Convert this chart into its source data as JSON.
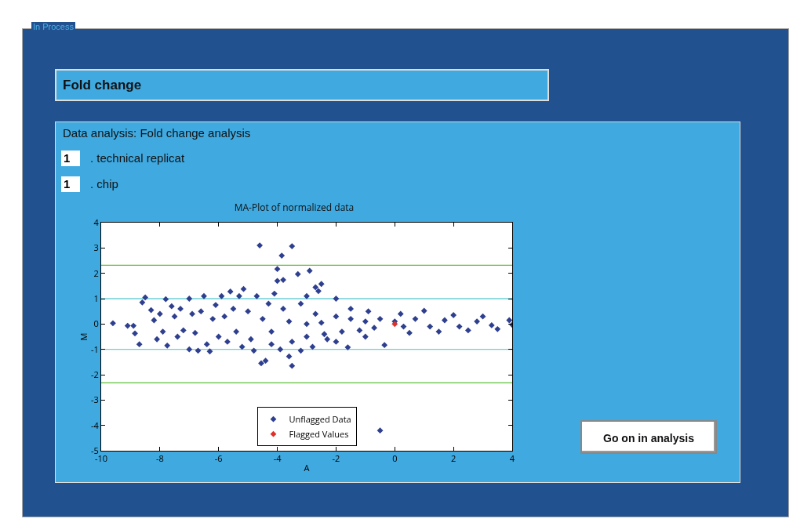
{
  "chart_data": {
    "type": "scatter",
    "title": "MA-Plot of normalized data",
    "xlabel": "A",
    "ylabel": "M",
    "annotations": [
      "In Process",
      "Fold change",
      "Data analysis: Fold change analysis",
      "1",
      ". technical replicat",
      "1",
      ". chip",
      "Go on in analysis"
    ],
    "xlim": [
      -10,
      4
    ],
    "xticks": [
      -10,
      -8,
      -6,
      -4,
      -2,
      0,
      2,
      4
    ],
    "ylim": [
      -5,
      4
    ],
    "yticks": [
      -5,
      -4,
      -3,
      -2,
      -1,
      0,
      1,
      2,
      3,
      4
    ],
    "grid": false,
    "legend": "bottom",
    "marker": "diamond",
    "ref_lines": [
      {
        "axis": "y",
        "value": 2.32,
        "color": "#5fc03a"
      },
      {
        "axis": "y",
        "value": 1,
        "color": "#6ecfd6"
      },
      {
        "axis": "y",
        "value": -1,
        "color": "#6ecfd6"
      },
      {
        "axis": "y",
        "value": -2.32,
        "color": "#5fc03a"
      }
    ],
    "series": [
      {
        "name": "Unflagged Data",
        "color": "#2e3f8f",
        "x": [
          -9.6,
          -9.1,
          -8.9,
          -8.85,
          -8.7,
          -8.6,
          -8.5,
          -8.3,
          -8.2,
          -8.1,
          -8.0,
          -7.9,
          -7.8,
          -7.75,
          -7.6,
          -7.5,
          -7.4,
          -7.3,
          -7.2,
          -7.0,
          -7.0,
          -6.9,
          -6.8,
          -6.7,
          -6.6,
          -6.5,
          -6.4,
          -6.3,
          -6.2,
          -6.1,
          -6.0,
          -5.9,
          -5.8,
          -5.7,
          -5.6,
          -5.5,
          -5.4,
          -5.3,
          -5.2,
          -5.15,
          -5.0,
          -4.9,
          -4.8,
          -4.7,
          -4.6,
          -4.55,
          -4.4,
          -4.3,
          -4.2,
          -4.1,
          -4.0,
          -4.0,
          -3.9,
          -3.85,
          -3.8,
          -3.6,
          -3.5,
          -3.5,
          -3.3,
          -3.2,
          -3.0,
          -2.9,
          -2.8,
          -2.7,
          -2.6,
          -2.5,
          -2.3,
          -2.0,
          -1.6,
          -1.5,
          -0.9,
          -0.5,
          -0.35,
          0.2,
          1.0,
          0.5,
          1.5,
          2.0,
          2.5,
          3.0,
          3.5,
          3.9,
          4.0,
          -3.8,
          -3.5,
          -3.2,
          -3.0,
          -2.7,
          -2.4,
          -2.0,
          -1.8,
          -1.5,
          -1.2,
          -1.0,
          -0.7,
          -0.5,
          0.0,
          0.3,
          0.7,
          1.2,
          1.7,
          2.2,
          2.8,
          3.3,
          -4.5,
          -4.2,
          -3.6,
          -3.0,
          -2.5,
          -1.0,
          -2.0
        ],
        "values": [
          0.03,
          -0.07,
          -0.07,
          -0.37,
          -0.8,
          0.85,
          1.05,
          0.55,
          0.15,
          -0.6,
          0.4,
          -0.3,
          0.98,
          -0.85,
          0.7,
          0.3,
          -0.5,
          0.6,
          -0.25,
          1.0,
          -1.0,
          0.4,
          -0.35,
          -1.05,
          0.5,
          1.1,
          -0.8,
          -1.08,
          0.2,
          0.75,
          -0.5,
          1.1,
          0.3,
          -0.7,
          1.28,
          0.6,
          -0.3,
          1.1,
          -0.9,
          1.38,
          0.5,
          -0.6,
          -1.05,
          1.1,
          3.1,
          -1.55,
          -1.45,
          0.8,
          -0.8,
          1.2,
          2.17,
          1.7,
          -1.0,
          2.7,
          1.74,
          -1.28,
          3.07,
          -1.65,
          1.97,
          -1.05,
          1.1,
          2.1,
          -0.9,
          1.45,
          1.3,
          1.58,
          -0.6,
          1.0,
          -0.92,
          0.6,
          0.5,
          -4.2,
          -0.83,
          0.4,
          0.52,
          -0.35,
          -0.3,
          0.35,
          -0.25,
          0.3,
          -0.2,
          0.15,
          -0.03,
          0.6,
          -0.7,
          0.8,
          -0.5,
          0.4,
          -0.4,
          0.3,
          -0.3,
          0.2,
          -0.25,
          0.1,
          -0.15,
          0.2,
          0.1,
          -0.1,
          0.2,
          -0.1,
          0.15,
          -0.1,
          0.1,
          -0.05,
          0.2,
          -0.3,
          0.1,
          0.0,
          0.05,
          -0.5,
          -0.7
        ]
      },
      {
        "name": "Flagged Values",
        "color": "#e0302a",
        "x": [
          0
        ],
        "values": [
          0
        ]
      }
    ]
  }
}
